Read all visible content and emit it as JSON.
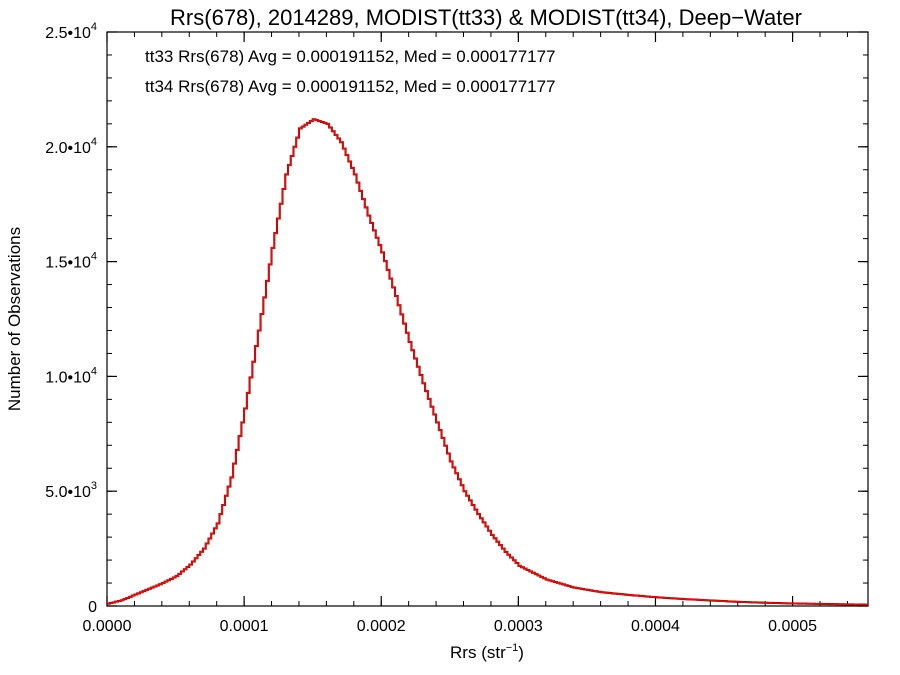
{
  "chart_data": {
    "type": "histogram-step",
    "title": "Rrs(678), 2014289, MODIST(tt33) & MODIST(tt34), Deep−Water",
    "xlabel_base": "Rrs (str",
    "xlabel_sup": "−1",
    "xlabel_tail": ")",
    "ylabel": "Number of Observations",
    "xlim": [
      0.0,
      0.000555
    ],
    "ylim": [
      0,
      25000
    ],
    "xticks": [
      {
        "value": 0.0,
        "label": "0.0000"
      },
      {
        "value": 0.0001,
        "label": "0.0001"
      },
      {
        "value": 0.0002,
        "label": "0.0002"
      },
      {
        "value": 0.0003,
        "label": "0.0003"
      },
      {
        "value": 0.0004,
        "label": "0.0004"
      },
      {
        "value": 0.0005,
        "label": "0.0005"
      }
    ],
    "yticks": [
      {
        "value": 0,
        "mant": "0",
        "exp": ""
      },
      {
        "value": 5000,
        "mant": "5.0•10",
        "exp": "3"
      },
      {
        "value": 10000,
        "mant": "1.0•10",
        "exp": "4"
      },
      {
        "value": 15000,
        "mant": "1.5•10",
        "exp": "4"
      },
      {
        "value": 20000,
        "mant": "2.0•10",
        "exp": "4"
      },
      {
        "value": 25000,
        "mant": "2.5•10",
        "exp": "4"
      }
    ],
    "annotations": [
      {
        "text": "tt33 Rrs(678) Avg = 0.000191152, Med = 0.000177177",
        "color": "#000000"
      },
      {
        "text": "tt34 Rrs(678) Avg = 0.000191152, Med = 0.000177177",
        "color": "#ff0000"
      }
    ],
    "series": [
      {
        "name": "tt33",
        "color": "#000000"
      },
      {
        "name": "tt34",
        "color": "#ff0000"
      }
    ],
    "bin_width": 2e-06,
    "x": [
      0.0,
      1e-05,
      2e-05,
      3e-05,
      4e-05,
      5e-05,
      6e-05,
      7e-05,
      8e-05,
      9e-05,
      0.0001,
      0.00011,
      0.00012,
      0.00013,
      0.00014,
      0.00015,
      0.00016,
      0.00017,
      0.00018,
      0.00019,
      0.0002,
      0.00021,
      0.00022,
      0.00023,
      0.00024,
      0.00025,
      0.00026,
      0.00027,
      0.00028,
      0.00029,
      0.0003,
      0.00032,
      0.00034,
      0.00036,
      0.00038,
      0.0004,
      0.00042,
      0.00044,
      0.00046,
      0.00048,
      0.0005,
      0.00052,
      0.00054,
      0.000555
    ],
    "y": [
      100,
      250,
      500,
      750,
      1000,
      1300,
      1800,
      2500,
      3600,
      5600,
      8600,
      12000,
      15600,
      18800,
      20800,
      21200,
      21000,
      20200,
      18800,
      17000,
      15400,
      13500,
      11500,
      9700,
      8000,
      6300,
      5000,
      4000,
      3100,
      2350,
      1750,
      1150,
      800,
      600,
      480,
      380,
      300,
      240,
      180,
      140,
      110,
      90,
      70,
      60
    ]
  }
}
